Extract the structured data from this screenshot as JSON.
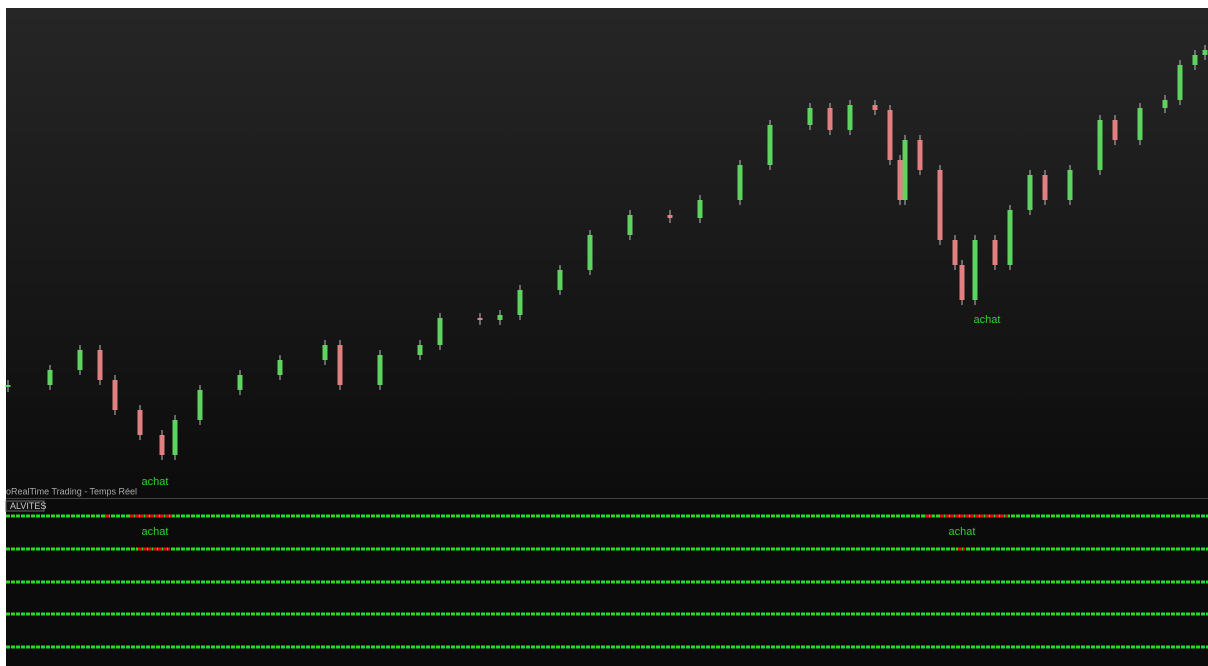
{
  "chart_data": {
    "type": "candlestick",
    "x": [
      8,
      50,
      80,
      100,
      115,
      140,
      162,
      175,
      200,
      240,
      280,
      325,
      340,
      380,
      420,
      440,
      480,
      500,
      520,
      560,
      590,
      630,
      670,
      700,
      740,
      770,
      810,
      830,
      850,
      875,
      890,
      900,
      905,
      920,
      940,
      955,
      962,
      975,
      995,
      1010,
      1030,
      1045,
      1070,
      1100,
      1115,
      1140,
      1165,
      1180,
      1195,
      1205
    ],
    "closes": [
      113,
      128,
      148,
      118,
      88,
      63,
      43,
      78,
      108,
      123,
      138,
      153,
      113,
      143,
      153,
      180,
      178,
      183,
      208,
      228,
      263,
      283,
      280,
      298,
      333,
      373,
      390,
      368,
      393,
      388,
      338,
      298,
      358,
      328,
      258,
      233,
      198,
      258,
      233,
      288,
      323,
      298,
      328,
      378,
      358,
      390,
      398,
      433,
      443,
      448
    ],
    "xlim": [
      8,
      1205
    ],
    "ylim": [
      0,
      490
    ],
    "up_color": "#5fd35f",
    "down_color": "#e08080",
    "annotations": [
      {
        "text": "achat",
        "x": 155,
        "y": 16
      },
      {
        "text": "achat",
        "x": 987,
        "y": 178
      }
    ]
  },
  "status_label": "oRealTime Trading - Temps Réel",
  "panel": {
    "title": "ALVITES",
    "rows": [
      {
        "red_ranges": [
          [
            105,
            110
          ],
          [
            130,
            172
          ],
          [
            925,
            932
          ],
          [
            940,
            1008
          ]
        ]
      },
      {
        "red_ranges": [
          [
            138,
            170
          ],
          [
            958,
            965
          ]
        ],
        "labels": [
          {
            "text": "achat",
            "x": 155
          },
          {
            "text": "achat",
            "x": 962
          }
        ]
      },
      {
        "red_ranges": []
      },
      {
        "red_ranges": []
      },
      {
        "red_ranges": []
      }
    ]
  }
}
